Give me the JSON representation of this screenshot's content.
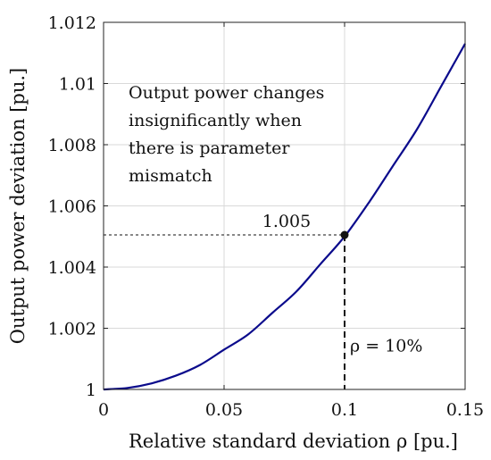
{
  "chart_data": {
    "type": "line",
    "xlabel": "Relative standard deviation ρ [pu.]",
    "ylabel": "Output power deviation [pu.]",
    "xlim": [
      0,
      0.15
    ],
    "ylim": [
      1,
      1.012
    ],
    "xticks": [
      0,
      0.05,
      0.1,
      0.15
    ],
    "xtick_labels": [
      "0",
      "0.05",
      "0.1",
      "0.15"
    ],
    "yticks": [
      1,
      1.002,
      1.004,
      1.006,
      1.008,
      1.01,
      1.012
    ],
    "ytick_labels": [
      "1",
      "1.002",
      "1.004",
      "1.006",
      "1.008",
      "1.01",
      "1.012"
    ],
    "grid": true,
    "series": [
      {
        "color": "#0b0b8c",
        "x": [
          0,
          0.01,
          0.02,
          0.03,
          0.04,
          0.05,
          0.06,
          0.07,
          0.08,
          0.09,
          0.1,
          0.11,
          0.12,
          0.13,
          0.14,
          0.15
        ],
        "y": [
          1.0,
          1.00005,
          1.0002,
          1.00045,
          1.0008,
          1.0013,
          1.0018,
          1.0025,
          1.0032,
          1.0041,
          1.005,
          1.0061,
          1.0073,
          1.0085,
          1.0099,
          1.0113
        ]
      }
    ],
    "marker": {
      "x": 0.1,
      "y": 1.00505,
      "label": "1.005"
    },
    "marker_x_label": "ρ = 10%",
    "annotation": {
      "lines": [
        "Output power changes",
        "insignificantly when",
        "there is parameter",
        "mismatch"
      ]
    }
  }
}
